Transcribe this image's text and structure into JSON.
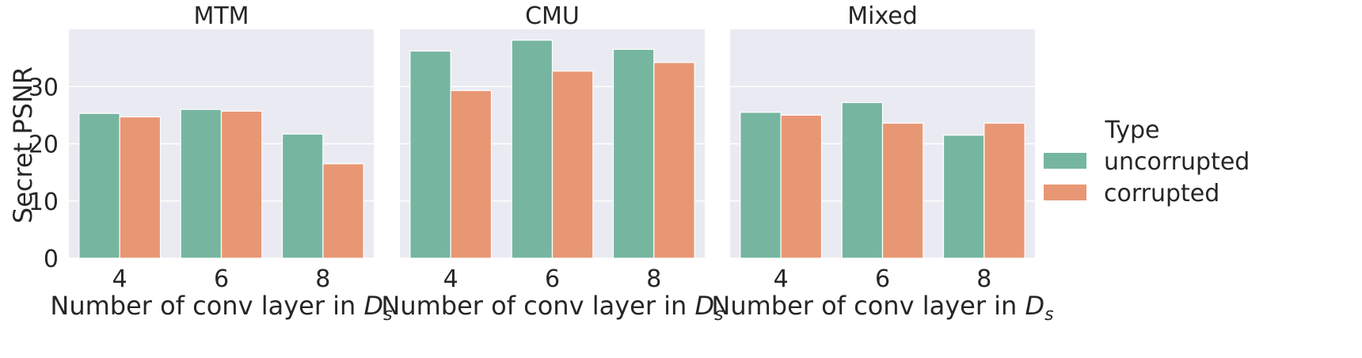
{
  "figure": {
    "ylabel": "Secret PSNR",
    "legend_title": "Type",
    "legend_position": "right"
  },
  "chart_data": [
    {
      "type": "bar",
      "title": "MTM",
      "xlabel_prefix": "Number of conv layer in ",
      "xlabel_math_base": "D",
      "xlabel_math_sub": "s",
      "ylabel": "Secret PSNR",
      "categories": [
        "4",
        "6",
        "8"
      ],
      "series": [
        {
          "name": "uncorrupted",
          "color": "#76b6a1",
          "values": [
            25.3,
            26.0,
            21.7
          ]
        },
        {
          "name": "corrupted",
          "color": "#e89774",
          "values": [
            24.7,
            25.7,
            16.5
          ]
        }
      ],
      "ylim": [
        0,
        40
      ],
      "yticks": [
        0,
        10,
        20,
        30
      ],
      "grid": true
    },
    {
      "type": "bar",
      "title": "CMU",
      "xlabel_prefix": "Number of conv layer in ",
      "xlabel_math_base": "D",
      "xlabel_math_sub": "s",
      "categories": [
        "4",
        "6",
        "8"
      ],
      "series": [
        {
          "name": "uncorrupted",
          "color": "#76b6a1",
          "values": [
            36.2,
            38.1,
            36.5
          ]
        },
        {
          "name": "corrupted",
          "color": "#e89774",
          "values": [
            29.3,
            32.7,
            34.2
          ]
        }
      ],
      "ylim": [
        0,
        40
      ],
      "yticks": [
        0,
        10,
        20,
        30
      ],
      "grid": true
    },
    {
      "type": "bar",
      "title": "Mixed",
      "xlabel_prefix": "Number of conv layer in ",
      "xlabel_math_base": "D",
      "xlabel_math_sub": "s",
      "categories": [
        "4",
        "6",
        "8"
      ],
      "series": [
        {
          "name": "uncorrupted",
          "color": "#76b6a1",
          "values": [
            25.5,
            27.2,
            21.5
          ]
        },
        {
          "name": "corrupted",
          "color": "#e89774",
          "values": [
            25.0,
            23.6,
            23.6
          ]
        }
      ],
      "ylim": [
        0,
        40
      ],
      "yticks": [
        0,
        10,
        20,
        30
      ],
      "grid": true
    }
  ]
}
